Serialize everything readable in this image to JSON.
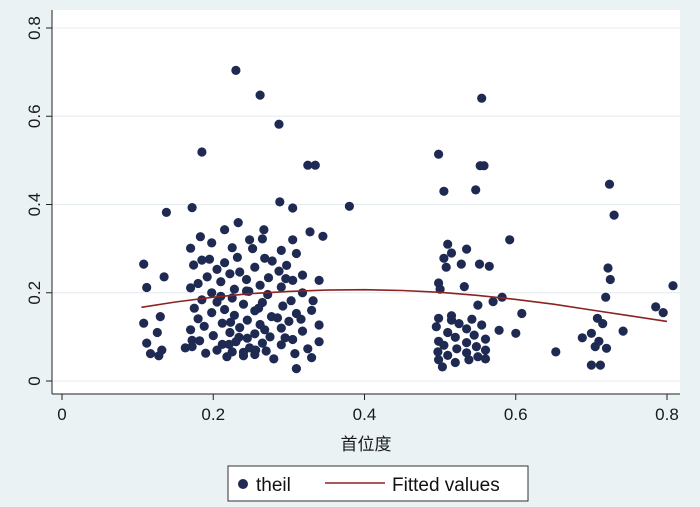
{
  "chart_data": {
    "type": "scatter",
    "xlabel": "首位度",
    "ylabel": "",
    "xlim": [
      0,
      0.82
    ],
    "ylim": [
      0,
      0.8
    ],
    "x_ticks": [
      {
        "value": 0,
        "label": "0"
      },
      {
        "value": 0.2,
        "label": "0.2"
      },
      {
        "value": 0.4,
        "label": "0.4"
      },
      {
        "value": 0.6,
        "label": "0.6"
      },
      {
        "value": 0.8,
        "label": "0.8"
      }
    ],
    "y_ticks": [
      {
        "value": 0,
        "label": "0"
      },
      {
        "value": 0.2,
        "label": "0.2"
      },
      {
        "value": 0.4,
        "label": "0.4"
      },
      {
        "value": 0.6,
        "label": "0.6"
      },
      {
        "value": 0.8,
        "label": "0.8"
      }
    ],
    "grid": true,
    "legend_position": "bottom",
    "colors": {
      "points": "#1e2a52",
      "fit": "#8b2323",
      "plot_bg": "#ffffff",
      "outer_bg": "#eaf2f3",
      "grid": "#e4ecee"
    },
    "series": [
      {
        "name": "theil",
        "kind": "scatter",
        "points": [
          [
            0.23,
            0.704
          ],
          [
            0.262,
            0.648
          ],
          [
            0.287,
            0.582
          ],
          [
            0.185,
            0.519
          ],
          [
            0.325,
            0.489
          ],
          [
            0.335,
            0.489
          ],
          [
            0.38,
            0.396
          ],
          [
            0.288,
            0.406
          ],
          [
            0.305,
            0.392
          ],
          [
            0.172,
            0.393
          ],
          [
            0.138,
            0.382
          ],
          [
            0.233,
            0.359
          ],
          [
            0.215,
            0.343
          ],
          [
            0.267,
            0.343
          ],
          [
            0.328,
            0.338
          ],
          [
            0.345,
            0.328
          ],
          [
            0.183,
            0.327
          ],
          [
            0.265,
            0.322
          ],
          [
            0.305,
            0.32
          ],
          [
            0.198,
            0.313
          ],
          [
            0.225,
            0.302
          ],
          [
            0.17,
            0.301
          ],
          [
            0.252,
            0.3
          ],
          [
            0.29,
            0.296
          ],
          [
            0.31,
            0.289
          ],
          [
            0.232,
            0.28
          ],
          [
            0.268,
            0.278
          ],
          [
            0.185,
            0.274
          ],
          [
            0.278,
            0.272
          ],
          [
            0.215,
            0.268
          ],
          [
            0.297,
            0.262
          ],
          [
            0.108,
            0.265
          ],
          [
            0.174,
            0.263
          ],
          [
            0.255,
            0.258
          ],
          [
            0.205,
            0.253
          ],
          [
            0.287,
            0.249
          ],
          [
            0.235,
            0.247
          ],
          [
            0.222,
            0.243
          ],
          [
            0.318,
            0.24
          ],
          [
            0.192,
            0.236
          ],
          [
            0.135,
            0.236
          ],
          [
            0.273,
            0.234
          ],
          [
            0.244,
            0.23
          ],
          [
            0.305,
            0.228
          ],
          [
            0.21,
            0.225
          ],
          [
            0.18,
            0.221
          ],
          [
            0.34,
            0.228
          ],
          [
            0.262,
            0.217
          ],
          [
            0.29,
            0.213
          ],
          [
            0.17,
            0.211
          ],
          [
            0.228,
            0.208
          ],
          [
            0.112,
            0.212
          ],
          [
            0.247,
            0.203
          ],
          [
            0.198,
            0.2
          ],
          [
            0.318,
            0.2
          ],
          [
            0.272,
            0.196
          ],
          [
            0.21,
            0.192
          ],
          [
            0.225,
            0.188
          ],
          [
            0.185,
            0.184
          ],
          [
            0.303,
            0.182
          ],
          [
            0.265,
            0.178
          ],
          [
            0.24,
            0.174
          ],
          [
            0.292,
            0.17
          ],
          [
            0.175,
            0.165
          ],
          [
            0.215,
            0.162
          ],
          [
            0.255,
            0.159
          ],
          [
            0.33,
            0.16
          ],
          [
            0.198,
            0.155
          ],
          [
            0.31,
            0.153
          ],
          [
            0.228,
            0.149
          ],
          [
            0.277,
            0.146
          ],
          [
            0.13,
            0.146
          ],
          [
            0.18,
            0.141
          ],
          [
            0.245,
            0.138
          ],
          [
            0.3,
            0.135
          ],
          [
            0.212,
            0.131
          ],
          [
            0.34,
            0.127
          ],
          [
            0.262,
            0.128
          ],
          [
            0.108,
            0.131
          ],
          [
            0.188,
            0.124
          ],
          [
            0.235,
            0.121
          ],
          [
            0.29,
            0.12
          ],
          [
            0.17,
            0.116
          ],
          [
            0.318,
            0.113
          ],
          [
            0.222,
            0.11
          ],
          [
            0.255,
            0.107
          ],
          [
            0.126,
            0.11
          ],
          [
            0.2,
            0.103
          ],
          [
            0.275,
            0.1
          ],
          [
            0.245,
            0.097
          ],
          [
            0.305,
            0.094
          ],
          [
            0.182,
            0.091
          ],
          [
            0.23,
            0.089
          ],
          [
            0.34,
            0.089
          ],
          [
            0.265,
            0.086
          ],
          [
            0.212,
            0.083
          ],
          [
            0.112,
            0.086
          ],
          [
            0.29,
            0.082
          ],
          [
            0.172,
            0.078
          ],
          [
            0.248,
            0.075
          ],
          [
            0.325,
            0.073
          ],
          [
            0.205,
            0.07
          ],
          [
            0.27,
            0.068
          ],
          [
            0.132,
            0.07
          ],
          [
            0.225,
            0.066
          ],
          [
            0.19,
            0.063
          ],
          [
            0.308,
            0.062
          ],
          [
            0.255,
            0.06
          ],
          [
            0.24,
            0.057
          ],
          [
            0.117,
            0.062
          ],
          [
            0.128,
            0.057
          ],
          [
            0.33,
            0.053
          ],
          [
            0.218,
            0.055
          ],
          [
            0.28,
            0.05
          ],
          [
            0.31,
            0.028
          ],
          [
            0.163,
            0.075
          ],
          [
            0.172,
            0.092
          ],
          [
            0.24,
            0.065
          ],
          [
            0.234,
            0.099
          ],
          [
            0.268,
            0.116
          ],
          [
            0.295,
            0.098
          ],
          [
            0.316,
            0.14
          ],
          [
            0.223,
            0.133
          ],
          [
            0.26,
            0.165
          ],
          [
            0.332,
            0.182
          ],
          [
            0.296,
            0.232
          ],
          [
            0.195,
            0.276
          ],
          [
            0.244,
            0.204
          ],
          [
            0.221,
            0.083
          ],
          [
            0.256,
            0.07
          ],
          [
            0.285,
            0.143
          ],
          [
            0.248,
            0.32
          ],
          [
            0.205,
            0.179
          ],
          [
            0.498,
            0.514
          ],
          [
            0.555,
            0.641
          ],
          [
            0.505,
            0.43
          ],
          [
            0.547,
            0.433
          ],
          [
            0.553,
            0.488
          ],
          [
            0.558,
            0.488
          ],
          [
            0.592,
            0.32
          ],
          [
            0.51,
            0.31
          ],
          [
            0.535,
            0.299
          ],
          [
            0.515,
            0.29
          ],
          [
            0.505,
            0.278
          ],
          [
            0.528,
            0.265
          ],
          [
            0.552,
            0.265
          ],
          [
            0.508,
            0.258
          ],
          [
            0.498,
            0.222
          ],
          [
            0.532,
            0.214
          ],
          [
            0.5,
            0.208
          ],
          [
            0.582,
            0.19
          ],
          [
            0.57,
            0.18
          ],
          [
            0.55,
            0.172
          ],
          [
            0.608,
            0.153
          ],
          [
            0.498,
            0.142
          ],
          [
            0.515,
            0.138
          ],
          [
            0.542,
            0.14
          ],
          [
            0.525,
            0.13
          ],
          [
            0.555,
            0.127
          ],
          [
            0.495,
            0.123
          ],
          [
            0.535,
            0.118
          ],
          [
            0.578,
            0.115
          ],
          [
            0.51,
            0.11
          ],
          [
            0.6,
            0.108
          ],
          [
            0.545,
            0.104
          ],
          [
            0.52,
            0.099
          ],
          [
            0.56,
            0.095
          ],
          [
            0.498,
            0.09
          ],
          [
            0.535,
            0.087
          ],
          [
            0.505,
            0.081
          ],
          [
            0.548,
            0.078
          ],
          [
            0.522,
            0.073
          ],
          [
            0.56,
            0.07
          ],
          [
            0.497,
            0.066
          ],
          [
            0.535,
            0.064
          ],
          [
            0.51,
            0.058
          ],
          [
            0.55,
            0.055
          ],
          [
            0.56,
            0.05
          ],
          [
            0.498,
            0.048
          ],
          [
            0.52,
            0.042
          ],
          [
            0.503,
            0.032
          ],
          [
            0.538,
            0.048
          ],
          [
            0.515,
            0.148
          ],
          [
            0.565,
            0.26
          ],
          [
            0.724,
            0.446
          ],
          [
            0.73,
            0.376
          ],
          [
            0.722,
            0.256
          ],
          [
            0.725,
            0.23
          ],
          [
            0.719,
            0.19
          ],
          [
            0.708,
            0.142
          ],
          [
            0.715,
            0.13
          ],
          [
            0.742,
            0.113
          ],
          [
            0.7,
            0.108
          ],
          [
            0.688,
            0.098
          ],
          [
            0.72,
            0.074
          ],
          [
            0.705,
            0.078
          ],
          [
            0.71,
            0.09
          ],
          [
            0.653,
            0.066
          ],
          [
            0.7,
            0.036
          ],
          [
            0.712,
            0.036
          ],
          [
            0.785,
            0.168
          ],
          [
            0.795,
            0.155
          ],
          [
            0.808,
            0.216
          ]
        ]
      },
      {
        "name": "Fitted values",
        "kind": "line",
        "points": [
          [
            0.105,
            0.167
          ],
          [
            0.15,
            0.179
          ],
          [
            0.2,
            0.19
          ],
          [
            0.25,
            0.198
          ],
          [
            0.3,
            0.203
          ],
          [
            0.35,
            0.206
          ],
          [
            0.4,
            0.207
          ],
          [
            0.45,
            0.205
          ],
          [
            0.5,
            0.201
          ],
          [
            0.55,
            0.194
          ],
          [
            0.6,
            0.185
          ],
          [
            0.65,
            0.174
          ],
          [
            0.7,
            0.161
          ],
          [
            0.75,
            0.148
          ],
          [
            0.8,
            0.135
          ]
        ]
      }
    ]
  }
}
